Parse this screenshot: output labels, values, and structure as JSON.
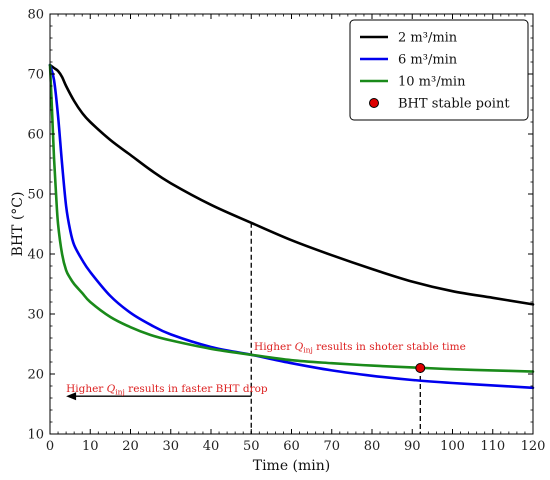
{
  "chart_data": {
    "type": "line",
    "title": "",
    "xlabel": "Time (min)",
    "ylabel": "BHT  (°C)",
    "xlim": [
      0,
      120
    ],
    "ylim": [
      10,
      80
    ],
    "xticks": [
      "0",
      "10",
      "20",
      "30",
      "40",
      "50",
      "60",
      "70",
      "80",
      "90",
      "100",
      "110",
      "120"
    ],
    "yticks": [
      "10",
      "20",
      "30",
      "40",
      "50",
      "60",
      "70",
      "80"
    ],
    "grid": false,
    "legend_position": "top-right",
    "series": [
      {
        "name": "2 m³/min",
        "color": "#000000",
        "x": [
          0,
          1,
          2,
          3,
          4,
          6,
          8,
          10,
          15,
          20,
          25,
          30,
          40,
          50,
          60,
          70,
          80,
          90,
          100,
          110,
          120
        ],
        "y": [
          71.5,
          71,
          70.5,
          69.5,
          68,
          65.5,
          63.5,
          62,
          59,
          56.5,
          54,
          51.8,
          48.2,
          45.2,
          42.3,
          39.8,
          37.5,
          35.4,
          33.8,
          32.7,
          31.6
        ]
      },
      {
        "name": "6 m³/min",
        "color": "#0000ee",
        "x": [
          0,
          1,
          2,
          3,
          4,
          5,
          6,
          8,
          10,
          15,
          20,
          25,
          30,
          40,
          50,
          60,
          70,
          80,
          90,
          100,
          110,
          120
        ],
        "y": [
          71.5,
          69,
          63,
          55,
          48,
          44,
          41.5,
          39,
          37,
          33,
          30.2,
          28.2,
          26.6,
          24.5,
          23.2,
          21.8,
          20.6,
          19.7,
          19,
          18.5,
          18.1,
          17.7
        ]
      },
      {
        "name": "10 m³/min",
        "color": "#1a8a1a",
        "x": [
          0,
          0.5,
          1,
          1.5,
          2,
          3,
          4,
          5,
          6,
          8,
          10,
          15,
          20,
          25,
          30,
          40,
          50,
          60,
          70,
          80,
          90,
          100,
          110,
          120
        ],
        "y": [
          71.5,
          64,
          56,
          50,
          45,
          40,
          37.3,
          36,
          35,
          33.5,
          32,
          29.5,
          27.8,
          26.5,
          25.6,
          24.2,
          23.2,
          22.3,
          21.8,
          21.4,
          21.1,
          20.8,
          20.6,
          20.4
        ]
      }
    ],
    "stable_point": {
      "name": "BHT stable point",
      "x": 92,
      "y": 21,
      "color": "#dd0000"
    },
    "reference_lines": [
      {
        "x": 50,
        "y_top": 45.2
      },
      {
        "x": 92,
        "y_top": 21
      }
    ],
    "annotations": [
      {
        "prefix": "Higher ",
        "symbol": "Q",
        "subscript": "inj",
        "suffix": " results in shoter stable time",
        "color": "#dd2222",
        "anchor_x": 77,
        "anchor_y": 24
      },
      {
        "prefix": "Higher ",
        "symbol": "Q",
        "subscript": "inj",
        "suffix": " results in faster BHT drop",
        "color": "#dd2222",
        "anchor_x": 4,
        "anchor_y": 17
      }
    ],
    "arrow": {
      "from_x": 50,
      "to_x": 4,
      "y": 16.3,
      "color": "#000000"
    }
  }
}
